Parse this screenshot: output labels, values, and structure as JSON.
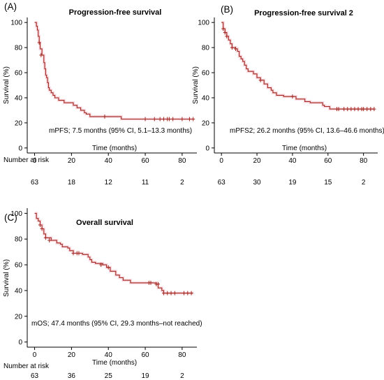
{
  "chart_data": [
    {
      "type": "line",
      "panel_label": "(A)",
      "title": "Progression-free survival",
      "xlabel": "Time (months)",
      "ylabel": "Survival (%)",
      "xlim": [
        -4,
        88
      ],
      "ylim": [
        -4,
        104
      ],
      "x_ticks": [
        "0",
        "20",
        "40",
        "60",
        "80"
      ],
      "y_ticks": [
        "0",
        "20",
        "40",
        "60",
        "80",
        "100"
      ],
      "annotation": "mPFS; 7.5 months (95% CI, 5.1–13.3 months)",
      "risk_label": "Number at risk",
      "risk_counts": [
        "63",
        "18",
        "12",
        "11",
        "2"
      ],
      "series": [
        {
          "color": "#a0281e",
          "steps": [
            [
              0,
              100
            ],
            [
              1,
              97
            ],
            [
              1.5,
              94
            ],
            [
              2,
              89
            ],
            [
              2.5,
              84
            ],
            [
              3,
              79
            ],
            [
              4,
              74
            ],
            [
              5,
              68
            ],
            [
              5.5,
              63
            ],
            [
              6,
              58
            ],
            [
              6.5,
              56
            ],
            [
              7,
              52
            ],
            [
              7.5,
              48
            ],
            [
              8,
              46
            ],
            [
              9,
              44
            ],
            [
              10,
              42
            ],
            [
              11,
              40
            ],
            [
              13,
              38
            ],
            [
              16,
              36
            ],
            [
              21,
              34
            ],
            [
              23,
              32
            ],
            [
              25,
              30
            ],
            [
              27,
              28
            ],
            [
              28,
              27
            ],
            [
              30,
              25
            ],
            [
              47,
              23
            ],
            [
              86,
              23
            ]
          ],
          "censor": [
            [
              2.5,
              84
            ],
            [
              3.5,
              74
            ],
            [
              38,
              25
            ],
            [
              60,
              23
            ],
            [
              65,
              23
            ],
            [
              68,
              23
            ],
            [
              70,
              23
            ],
            [
              72,
              23
            ],
            [
              73,
              23
            ],
            [
              75,
              23
            ],
            [
              80,
              23
            ],
            [
              84,
              23
            ],
            [
              86,
              23
            ]
          ]
        }
      ]
    },
    {
      "type": "line",
      "panel_label": "(B)",
      "title": "Progression-free survival 2",
      "xlabel": "Time (months)",
      "ylabel": "Survival (%)",
      "xlim": [
        -4,
        88
      ],
      "ylim": [
        -4,
        104
      ],
      "x_ticks": [
        "0",
        "20",
        "40",
        "60",
        "80"
      ],
      "y_ticks": [
        "0",
        "20",
        "40",
        "60",
        "80",
        "100"
      ],
      "annotation": "mPFS2; 26.2 months (95% CI, 13.6–46.6 months)",
      "risk_label": "",
      "risk_counts": [
        "63",
        "30",
        "19",
        "15",
        "2"
      ],
      "series": [
        {
          "color": "#a0281e",
          "steps": [
            [
              0,
              100
            ],
            [
              1,
              95
            ],
            [
              2,
              92
            ],
            [
              3,
              89
            ],
            [
              4,
              86
            ],
            [
              5,
              83
            ],
            [
              6,
              80
            ],
            [
              8,
              79
            ],
            [
              9,
              77
            ],
            [
              10,
              73
            ],
            [
              11,
              71
            ],
            [
              12,
              69
            ],
            [
              13,
              66
            ],
            [
              14,
              63
            ],
            [
              15,
              61
            ],
            [
              18,
              59
            ],
            [
              20,
              56
            ],
            [
              22,
              54
            ],
            [
              24,
              51
            ],
            [
              26,
              48
            ],
            [
              28,
              46
            ],
            [
              29,
              44
            ],
            [
              31,
              42
            ],
            [
              35,
              41
            ],
            [
              42,
              39
            ],
            [
              47,
              37
            ],
            [
              50,
              36
            ],
            [
              57,
              34
            ],
            [
              58,
              33
            ],
            [
              61,
              31
            ],
            [
              86,
              31
            ]
          ],
          "censor": [
            [
              1,
              95
            ],
            [
              2,
              92
            ],
            [
              3,
              89
            ],
            [
              6,
              80
            ],
            [
              8,
              79
            ],
            [
              22,
              54
            ],
            [
              40,
              41
            ],
            [
              65,
              31
            ],
            [
              66,
              31
            ],
            [
              69,
              31
            ],
            [
              71,
              31
            ],
            [
              73,
              31
            ],
            [
              75,
              31
            ],
            [
              77,
              31
            ],
            [
              79,
              31
            ],
            [
              80,
              31
            ],
            [
              82,
              31
            ],
            [
              84,
              31
            ],
            [
              86,
              31
            ]
          ]
        }
      ]
    },
    {
      "type": "line",
      "panel_label": "(C)",
      "title": "Overall survival",
      "xlabel": "Time (months)",
      "ylabel": "Survival (%)",
      "xlim": [
        -4,
        88
      ],
      "ylim": [
        -4,
        104
      ],
      "x_ticks": [
        "0",
        "20",
        "40",
        "60",
        "80"
      ],
      "y_ticks": [
        "0",
        "20",
        "40",
        "60",
        "80",
        "100"
      ],
      "annotation": "mOS; 47.4 months (95% CI, 29.3 months–not reached)",
      "risk_label": "Number at risk",
      "risk_counts": [
        "63",
        "36",
        "25",
        "19",
        "2"
      ],
      "series": [
        {
          "color": "#a0281e",
          "steps": [
            [
              0,
              100
            ],
            [
              1,
              96
            ],
            [
              2,
              94
            ],
            [
              3,
              91
            ],
            [
              4,
              88
            ],
            [
              5,
              84
            ],
            [
              6,
              81
            ],
            [
              9,
              79
            ],
            [
              12,
              77
            ],
            [
              14,
              76
            ],
            [
              15,
              74
            ],
            [
              18,
              73
            ],
            [
              19,
              71
            ],
            [
              21,
              69
            ],
            [
              26,
              68
            ],
            [
              29,
              66
            ],
            [
              30,
              64
            ],
            [
              31,
              62
            ],
            [
              33,
              61
            ],
            [
              37,
              60
            ],
            [
              39,
              58
            ],
            [
              41,
              55
            ],
            [
              44,
              52
            ],
            [
              46,
              50
            ],
            [
              48,
              48
            ],
            [
              52,
              46
            ],
            [
              66,
              45
            ],
            [
              67,
              42
            ],
            [
              69,
              40
            ],
            [
              70,
              38
            ],
            [
              86,
              38
            ]
          ],
          "censor": [
            [
              3,
              91
            ],
            [
              4,
              88
            ],
            [
              6,
              81
            ],
            [
              8,
              79
            ],
            [
              21,
              69
            ],
            [
              23,
              69
            ],
            [
              24,
              69
            ],
            [
              36,
              60
            ],
            [
              40,
              58
            ],
            [
              62,
              46
            ],
            [
              63,
              46
            ],
            [
              66,
              45
            ],
            [
              67,
              45
            ],
            [
              70,
              38
            ],
            [
              72,
              38
            ],
            [
              74,
              38
            ],
            [
              76,
              38
            ],
            [
              81,
              38
            ],
            [
              83,
              38
            ],
            [
              85,
              38
            ]
          ]
        }
      ]
    }
  ]
}
